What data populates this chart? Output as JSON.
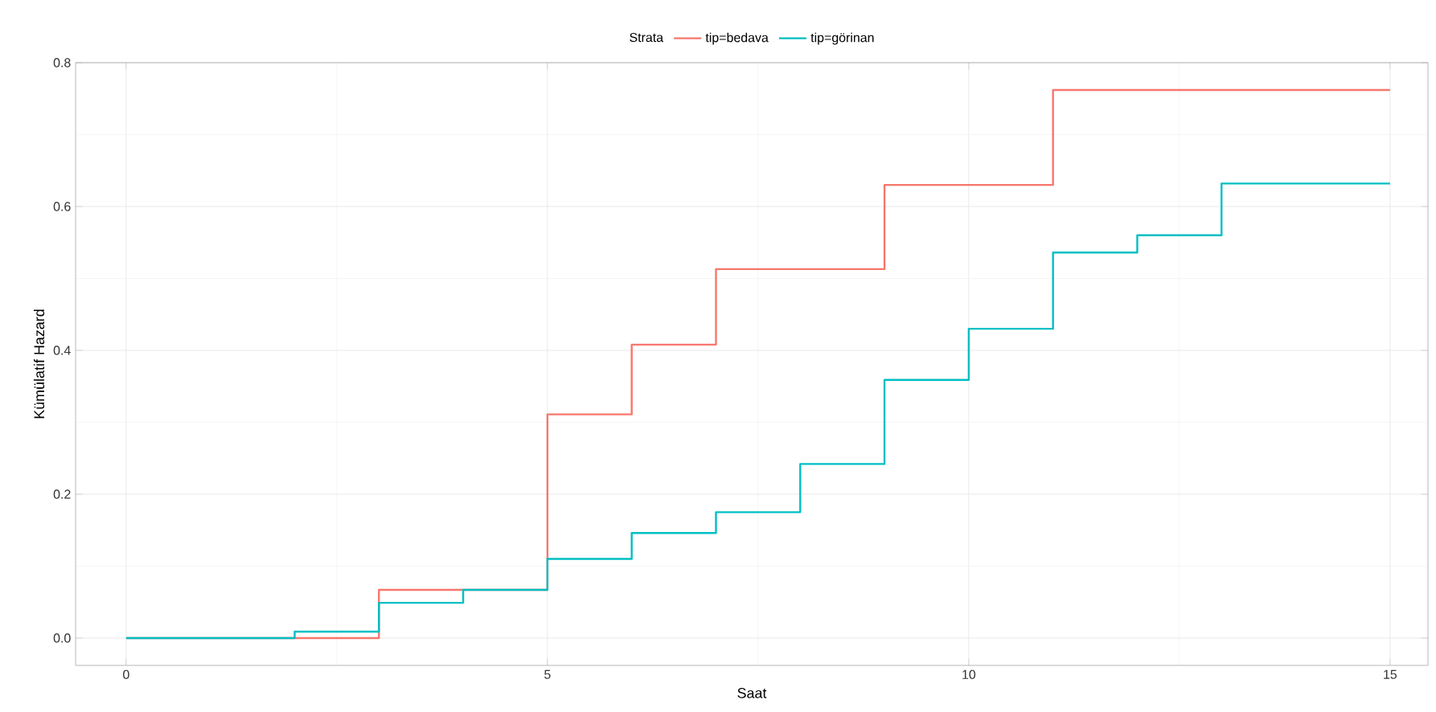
{
  "chart_data": {
    "type": "step",
    "xlabel": "Saat",
    "ylabel": "Kümülatif Hazard",
    "legend_title": "Strata",
    "legend": "top",
    "grid": true,
    "xlim": [
      -0.6,
      15.45
    ],
    "ylim": [
      -0.038,
      0.8
    ],
    "xticks": [
      0,
      5,
      10,
      15
    ],
    "yticks": [
      {
        "value": 0,
        "label": "0.0"
      },
      0.2,
      0.4,
      0.6,
      0.8
    ],
    "series": [
      {
        "name": "tip=bedava",
        "color": "#f8766d",
        "x": [
          0,
          3,
          5,
          6,
          7,
          9,
          11,
          15
        ],
        "values": [
          0,
          0.067,
          0.311,
          0.408,
          0.513,
          0.63,
          0.762,
          0.762
        ]
      },
      {
        "name": "tip=görinan",
        "color": "#00bfc4",
        "x": [
          0,
          2,
          3,
          4,
          5,
          6,
          7,
          8,
          9,
          10,
          11,
          12,
          13,
          15
        ],
        "values": [
          0,
          0.009,
          0.049,
          0.067,
          0.11,
          0.146,
          0.175,
          0.242,
          0.359,
          0.43,
          0.536,
          0.56,
          0.632,
          0.632
        ]
      }
    ]
  }
}
